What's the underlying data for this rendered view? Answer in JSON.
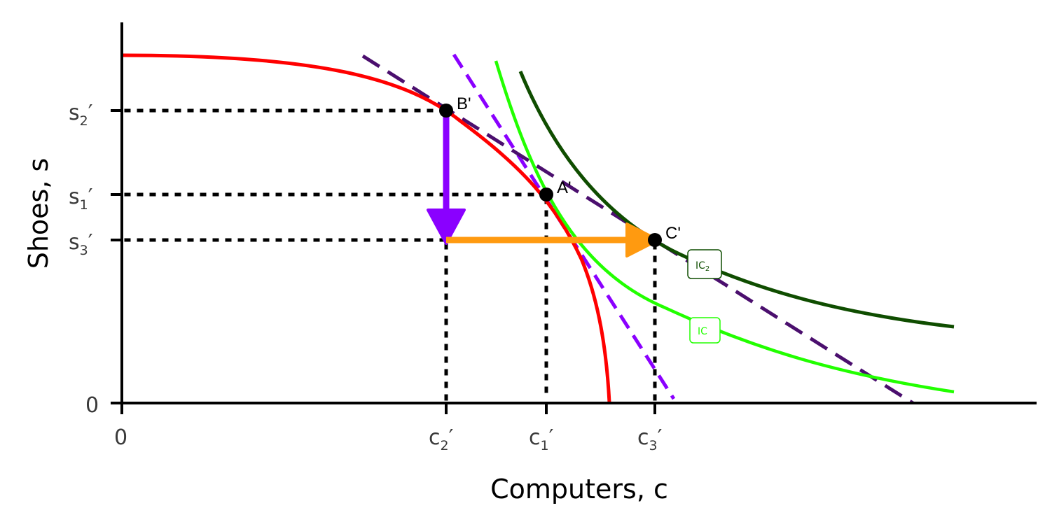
{
  "axes": {
    "x_title": "Computers, c",
    "y_title": "Shoes, s",
    "origin_x": "0",
    "origin_y": "0"
  },
  "x_ticks": [
    {
      "base": "c",
      "sub": "2",
      "prime": "′"
    },
    {
      "base": "c",
      "sub": "1",
      "prime": "′"
    },
    {
      "base": "c",
      "sub": "3",
      "prime": "′"
    }
  ],
  "y_ticks": [
    {
      "base": "s",
      "sub": "2",
      "prime": "′"
    },
    {
      "base": "s",
      "sub": "1",
      "prime": "′"
    },
    {
      "base": "s",
      "sub": "3",
      "prime": "′"
    }
  ],
  "points": {
    "a": "A'",
    "b": "B'",
    "c": "C'"
  },
  "curve_labels": {
    "ic": "IC",
    "ic2_base": "IC",
    "ic2_sub": "2"
  },
  "colors": {
    "ppf": "#ff0000",
    "ic": "#22ff00",
    "ic2": "#0f4d00",
    "world_price": "#4b0f6e",
    "domestic_price": "#8a00ff",
    "down_arrow": "#8a00ff",
    "right_arrow": "#ff9a10",
    "guides": "#000000"
  }
}
